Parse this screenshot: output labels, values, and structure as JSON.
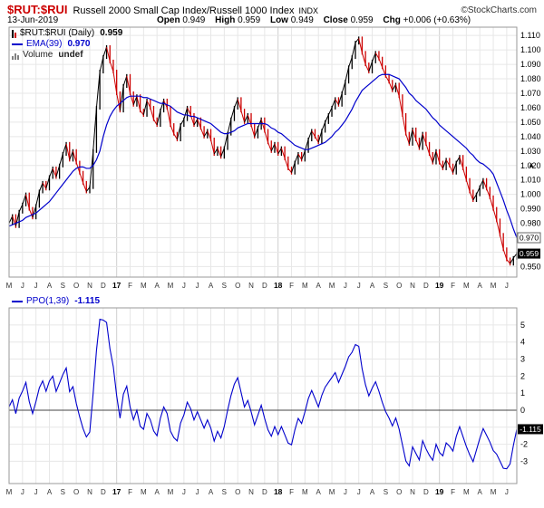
{
  "colors": {
    "up": "#000000",
    "down": "#cc0000",
    "ema": "#0000cc",
    "ppo": "#0000cc",
    "grid": "#e7e7e7",
    "grid_year": "#cfcfcf",
    "frame": "#999999",
    "symbol_red": "#cc0000"
  },
  "header": {
    "symbol": "$RUT:$RUI",
    "description": "Russell 2000 Small Cap Index/Russell 1000 Index",
    "exchange": "INDX",
    "copyright": "©StockCharts.com",
    "date": "13-Jun-2019",
    "quote": [
      {
        "label": "Open",
        "value": "0.949"
      },
      {
        "label": "High",
        "value": "0.959"
      },
      {
        "label": "Low",
        "value": "0.949"
      },
      {
        "label": "Close",
        "value": "0.959"
      },
      {
        "label": "Chg",
        "value": "+0.006 (+0.63%)"
      }
    ]
  },
  "price_panel": {
    "legend": [
      {
        "label": "$RUT:$RUI (Daily)",
        "value": "0.959"
      },
      {
        "label": "EMA(39)",
        "value": "0.970"
      },
      {
        "label": "Volume",
        "value": "undef"
      }
    ]
  },
  "ppo_panel": {
    "legend": {
      "label": "PPO(1,39)",
      "value": "-1.115"
    }
  },
  "chart_data": [
    {
      "type": "candlestick",
      "title": "$RUT:$RUI (Daily)",
      "x_labels": [
        "M",
        "J",
        "J",
        "A",
        "S",
        "O",
        "N",
        "D",
        "17",
        "F",
        "M",
        "A",
        "M",
        "J",
        "J",
        "A",
        "S",
        "O",
        "N",
        "D",
        "18",
        "F",
        "M",
        "A",
        "M",
        "J",
        "J",
        "A",
        "S",
        "O",
        "N",
        "D",
        "19",
        "F",
        "M",
        "A",
        "M",
        "J"
      ],
      "year_tick_indices": [
        8,
        20,
        32
      ],
      "ylim": [
        0.95,
        1.11
      ],
      "yticks": [
        1.11,
        1.1,
        1.09,
        1.08,
        1.07,
        1.06,
        1.05,
        1.04,
        1.03,
        1.02,
        1.01,
        1.0,
        0.99,
        0.98,
        0.97,
        0.96,
        0.95
      ],
      "series": [
        {
          "name": "$RUT:$RUI close",
          "values": [
            0.98,
            0.985,
            0.978,
            0.988,
            0.993,
            1.0,
            0.99,
            0.984,
            0.992,
            1.002,
            1.008,
            1.004,
            1.012,
            1.018,
            1.012,
            1.02,
            1.028,
            1.035,
            1.024,
            1.03,
            1.022,
            1.015,
            1.008,
            1.002,
            1.005,
            1.03,
            1.06,
            1.085,
            1.095,
            1.102,
            1.092,
            1.085,
            1.07,
            1.058,
            1.075,
            1.082,
            1.07,
            1.062,
            1.068,
            1.058,
            1.055,
            1.065,
            1.06,
            1.052,
            1.048,
            1.058,
            1.065,
            1.06,
            1.048,
            1.042,
            1.038,
            1.048,
            1.052,
            1.06,
            1.055,
            1.048,
            1.052,
            1.046,
            1.04,
            1.044,
            1.038,
            1.028,
            1.032,
            1.026,
            1.032,
            1.042,
            1.052,
            1.06,
            1.066,
            1.058,
            1.05,
            1.055,
            1.048,
            1.04,
            1.046,
            1.052,
            1.044,
            1.036,
            1.03,
            1.035,
            1.028,
            1.032,
            1.025,
            1.018,
            1.015,
            1.022,
            1.028,
            1.024,
            1.03,
            1.038,
            1.044,
            1.04,
            1.036,
            1.044,
            1.05,
            1.055,
            1.06,
            1.066,
            1.062,
            1.07,
            1.078,
            1.088,
            1.095,
            1.105,
            1.108,
            1.098,
            1.09,
            1.085,
            1.092,
            1.098,
            1.094,
            1.088,
            1.082,
            1.078,
            1.072,
            1.076,
            1.068,
            1.055,
            1.042,
            1.035,
            1.045,
            1.038,
            1.032,
            1.042,
            1.035,
            1.028,
            1.022,
            1.03,
            1.022,
            1.018,
            1.024,
            1.02,
            1.015,
            1.022,
            1.026,
            1.018,
            1.01,
            1.002,
            0.996,
            1.0,
            1.005,
            1.01,
            1.004,
            0.998,
            0.99,
            0.982,
            0.972,
            0.962,
            0.955,
            0.952,
            0.956,
            0.959
          ]
        },
        {
          "name": "EMA(39)",
          "values": [
            0.978,
            0.979,
            0.98,
            0.981,
            0.982,
            0.984,
            0.985,
            0.986,
            0.987,
            0.989,
            0.991,
            0.993,
            0.995,
            0.998,
            1.001,
            1.004,
            1.007,
            1.01,
            1.013,
            1.016,
            1.018,
            1.019,
            1.019,
            1.018,
            1.018,
            1.02,
            1.024,
            1.03,
            1.04,
            1.048,
            1.054,
            1.058,
            1.061,
            1.063,
            1.065,
            1.067,
            1.068,
            1.068,
            1.068,
            1.068,
            1.067,
            1.067,
            1.066,
            1.065,
            1.064,
            1.063,
            1.063,
            1.062,
            1.061,
            1.059,
            1.057,
            1.056,
            1.055,
            1.055,
            1.054,
            1.054,
            1.053,
            1.052,
            1.051,
            1.05,
            1.049,
            1.047,
            1.045,
            1.043,
            1.042,
            1.042,
            1.043,
            1.044,
            1.046,
            1.047,
            1.048,
            1.049,
            1.049,
            1.049,
            1.049,
            1.049,
            1.049,
            1.048,
            1.046,
            1.045,
            1.043,
            1.042,
            1.04,
            1.038,
            1.036,
            1.034,
            1.033,
            1.032,
            1.031,
            1.031,
            1.032,
            1.033,
            1.034,
            1.035,
            1.036,
            1.038,
            1.04,
            1.043,
            1.045,
            1.048,
            1.051,
            1.055,
            1.059,
            1.064,
            1.068,
            1.072,
            1.074,
            1.076,
            1.078,
            1.08,
            1.082,
            1.083,
            1.083,
            1.083,
            1.082,
            1.081,
            1.08,
            1.077,
            1.074,
            1.07,
            1.068,
            1.065,
            1.063,
            1.061,
            1.059,
            1.056,
            1.053,
            1.051,
            1.048,
            1.046,
            1.044,
            1.042,
            1.04,
            1.038,
            1.036,
            1.034,
            1.032,
            1.029,
            1.027,
            1.024,
            1.022,
            1.021,
            1.019,
            1.017,
            1.014,
            1.008,
            1.002,
            0.996,
            0.989,
            0.983,
            0.976,
            0.97
          ]
        }
      ],
      "axis_boxes": [
        {
          "text": "0.970",
          "value": 0.97,
          "style": "outline"
        },
        {
          "text": "0.959",
          "value": 0.959,
          "style": "filled"
        }
      ],
      "axis_marker": {
        "value": 1.021,
        "glyph": "▲"
      }
    },
    {
      "type": "line",
      "title": "PPO(1,39)",
      "x_labels": [
        "M",
        "J",
        "J",
        "A",
        "S",
        "O",
        "N",
        "D",
        "17",
        "F",
        "M",
        "A",
        "M",
        "J",
        "J",
        "A",
        "S",
        "O",
        "N",
        "D",
        "18",
        "F",
        "M",
        "A",
        "M",
        "J",
        "J",
        "A",
        "S",
        "O",
        "N",
        "D",
        "19",
        "F",
        "M",
        "A",
        "M",
        "J"
      ],
      "year_tick_indices": [
        8,
        20,
        32
      ],
      "ylim": [
        -3,
        5
      ],
      "yticks": [
        5,
        4,
        3,
        2,
        1,
        0,
        -1,
        -2,
        -3
      ],
      "zero_line": true,
      "series": [
        {
          "name": "PPO(1,39)",
          "values": [
            0.2,
            0.61,
            -0.2,
            0.71,
            1.12,
            1.63,
            0.51,
            -0.2,
            0.51,
            1.31,
            1.72,
            1.11,
            1.71,
            2.0,
            1.1,
            1.59,
            2.09,
            2.48,
            1.09,
            1.38,
            0.39,
            -0.39,
            -1.08,
            -1.57,
            -1.28,
            0.98,
            3.52,
            5.34,
            5.29,
            5.15,
            3.61,
            2.55,
            0.85,
            -0.47,
            0.94,
            1.41,
            0.19,
            -0.56,
            0.0,
            -0.94,
            -1.12,
            -0.19,
            -0.56,
            -1.22,
            -1.5,
            -0.47,
            0.19,
            -0.19,
            -1.23,
            -1.61,
            -1.8,
            -0.76,
            -0.28,
            0.47,
            0.09,
            -0.57,
            -0.09,
            -0.57,
            -1.05,
            -0.57,
            -1.05,
            -1.81,
            -1.24,
            -1.63,
            -0.96,
            0.0,
            0.86,
            1.53,
            1.91,
            1.05,
            0.19,
            0.57,
            -0.1,
            -0.86,
            -0.29,
            0.29,
            -0.48,
            -1.15,
            -1.53,
            -0.96,
            -1.44,
            -0.96,
            -1.44,
            -1.93,
            -2.03,
            -1.16,
            -0.48,
            -0.78,
            -0.1,
            0.68,
            1.16,
            0.68,
            0.19,
            0.87,
            1.35,
            1.64,
            1.92,
            2.21,
            1.63,
            2.1,
            2.57,
            3.13,
            3.4,
            3.85,
            3.75,
            2.43,
            1.49,
            0.84,
            1.3,
            1.67,
            1.11,
            0.46,
            -0.09,
            -0.46,
            -0.92,
            -0.46,
            -1.11,
            -2.04,
            -2.98,
            -3.27,
            -2.15,
            -2.54,
            -2.92,
            -1.79,
            -2.27,
            -2.65,
            -2.94,
            -2.0,
            -2.48,
            -2.68,
            -1.92,
            -2.11,
            -2.4,
            -1.54,
            -0.97,
            -1.55,
            -2.13,
            -2.62,
            -3.02,
            -2.34,
            -1.66,
            -1.08,
            -1.47,
            -1.87,
            -2.37,
            -2.58,
            -2.99,
            -3.41,
            -3.44,
            -3.15,
            -2.05,
            -1.115
          ]
        }
      ],
      "axis_boxes": [
        {
          "text": "-1.115",
          "value": -1.115,
          "style": "filled"
        }
      ]
    }
  ]
}
